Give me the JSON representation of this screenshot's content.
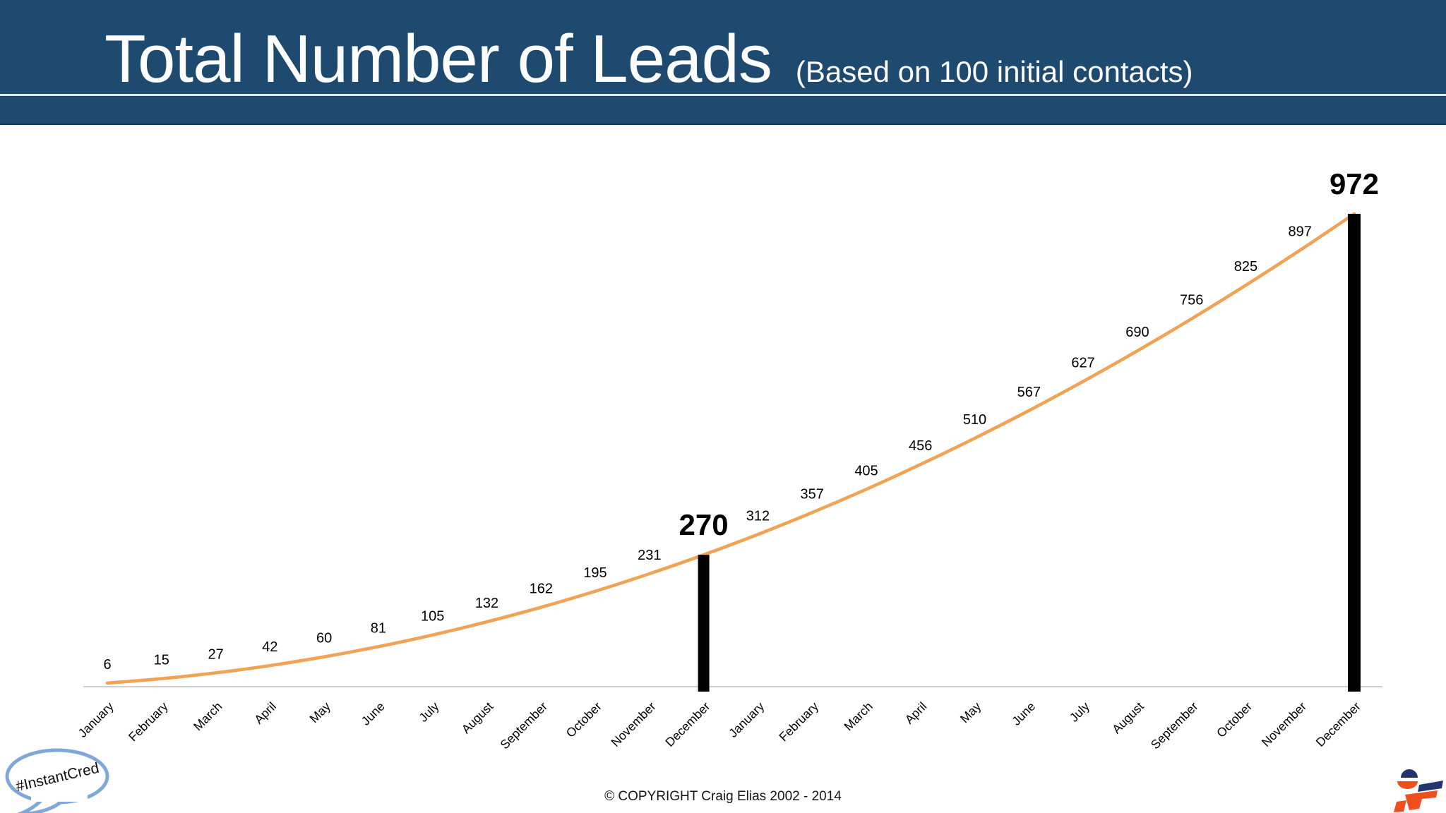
{
  "header": {
    "title": "Total Number of Leads",
    "subtitle": "(Based on 100 initial contacts)"
  },
  "chart_data": {
    "type": "line",
    "title": "Total Number of Leads (Based on 100 initial contacts)",
    "categories": [
      "January",
      "February",
      "March",
      "April",
      "May",
      "June",
      "July",
      "August",
      "September",
      "October",
      "November",
      "December",
      "January",
      "February",
      "March",
      "April",
      "May",
      "June",
      "July",
      "August",
      "September",
      "October",
      "November",
      "December"
    ],
    "values": [
      6,
      15,
      27,
      42,
      60,
      81,
      105,
      132,
      162,
      195,
      231,
      270,
      312,
      357,
      405,
      456,
      510,
      567,
      627,
      690,
      756,
      825,
      897,
      972
    ],
    "emphasis": [
      {
        "month_index": 11,
        "value": 270
      },
      {
        "month_index": 23,
        "value": 972
      }
    ],
    "ylim": [
      0,
      1000
    ],
    "grid": false,
    "legend": false,
    "x_axis": {
      "label_rotation_deg": -45
    },
    "line_color": "#F0A355",
    "emphasis_bar_color": "#000000",
    "axis_line_color": "#BDBDBD",
    "label_color": "#000000"
  },
  "footer": {
    "copyright": "© COPYRIGHT Craig Elias 2002 - 2014",
    "bubble_text": "#InstantCred"
  },
  "colors": {
    "header_bg": "#1F4A70",
    "header_underline": "#DCE9F5",
    "title_text": "#FDFDFD",
    "bubble_border": "#7FA8D9",
    "logo_navy": "#22356F",
    "logo_orange": "#F04E1F"
  },
  "icons": {
    "speech_bubble": "speech-bubble-icon",
    "logo": "instantcred-logo-icon"
  }
}
